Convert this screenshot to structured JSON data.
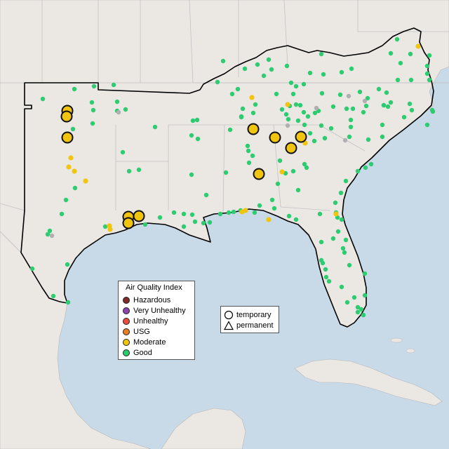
{
  "legend": {
    "title": "Air Quality Index",
    "items": [
      {
        "label": "Hazardous",
        "color": "#7e2b2b"
      },
      {
        "label": "Very Unhealthy",
        "color": "#8e44ad"
      },
      {
        "label": "Unhealthy",
        "color": "#e74c3c"
      },
      {
        "label": "USG",
        "color": "#e67e22"
      },
      {
        "label": "Moderate",
        "color": "#f1c40f"
      },
      {
        "label": "Good",
        "color": "#2ecc71"
      }
    ]
  },
  "shape_legend": {
    "items": [
      {
        "label": "temporary",
        "icon": "circle-icon"
      },
      {
        "label": "permanent",
        "icon": "triangle-icon"
      }
    ]
  },
  "colors": {
    "land": "#ebe8e4",
    "water": "#c8d9e8",
    "good": "#2ecc71",
    "moderate": "#f1c40f",
    "offline": "#b0b0b0"
  }
}
